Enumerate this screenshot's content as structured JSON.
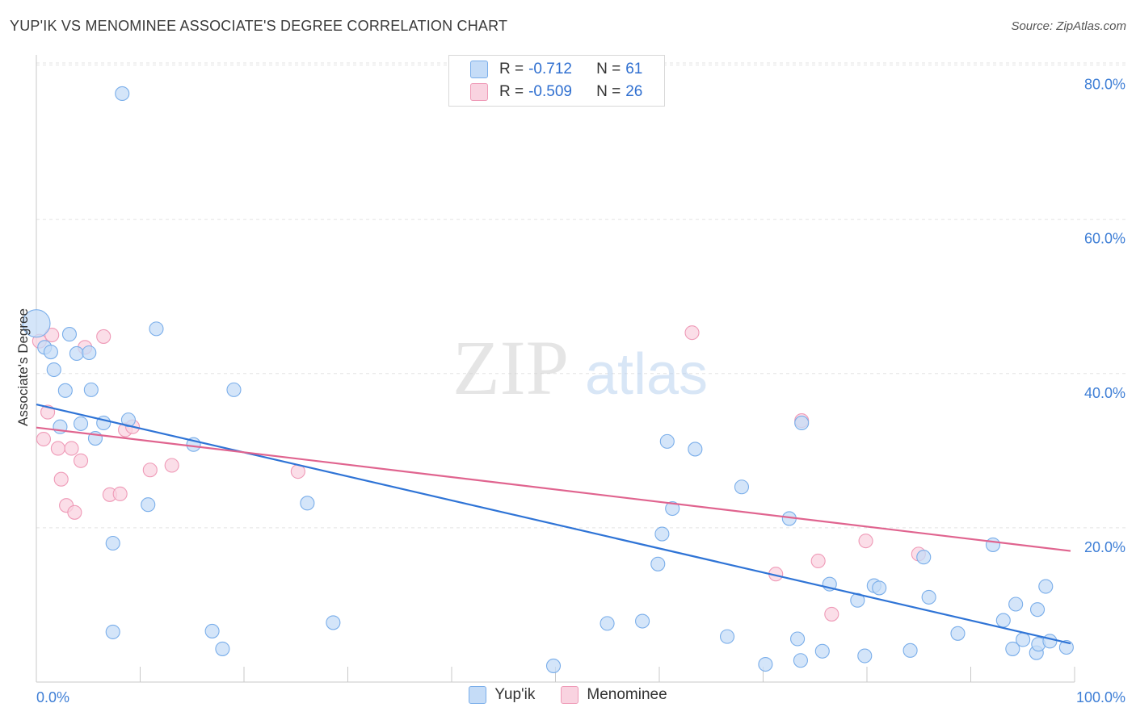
{
  "header": {
    "title": "YUP'IK VS MENOMINEE ASSOCIATE'S DEGREE CORRELATION CHART",
    "source": "Source: ZipAtlas.com"
  },
  "watermark": {
    "zip": "ZIP",
    "atlas": "atlas"
  },
  "legend": {
    "series1": {
      "r_label": "R =",
      "r_value": "-0.712",
      "n_label": "N =",
      "n_value": "61"
    },
    "series2": {
      "r_label": "R =",
      "r_value": "-0.509",
      "n_label": "N =",
      "n_value": "26"
    }
  },
  "bottom_legend": {
    "series1": "Yup'ik",
    "series2": "Menominee"
  },
  "chart_data": {
    "type": "scatter",
    "title": "YUP'IK VS MENOMINEE ASSOCIATE'S DEGREE CORRELATION CHART",
    "xlabel": "",
    "ylabel": "Associate's Degree",
    "xlim": [
      0,
      100
    ],
    "ylim": [
      0,
      84
    ],
    "x_tick_labels": [
      "0.0%",
      "100.0%"
    ],
    "y_ticks": [
      20,
      40,
      60,
      80
    ],
    "y_tick_labels": [
      "20.0%",
      "40.0%",
      "60.0%",
      "80.0%"
    ],
    "grid": true,
    "colors": {
      "series1": "#7aaeea",
      "series1_fill": "#c5dcf7",
      "series1_line": "#2f74d6",
      "series2": "#ef9ab7",
      "series2_fill": "#f9d3e0",
      "series2_line": "#e0648f"
    },
    "series": [
      {
        "name": "Yup'ik",
        "r": -0.712,
        "n": 61,
        "trend": {
          "x": [
            0,
            100
          ],
          "y": [
            36.0,
            5.0
          ]
        },
        "points": [
          {
            "x": 0.0,
            "y": 46.5,
            "big": true
          },
          {
            "x": 8.3,
            "y": 76.3
          },
          {
            "x": 0.8,
            "y": 43.4
          },
          {
            "x": 1.4,
            "y": 42.8
          },
          {
            "x": 3.2,
            "y": 45.1
          },
          {
            "x": 3.9,
            "y": 42.6
          },
          {
            "x": 5.1,
            "y": 42.7
          },
          {
            "x": 11.6,
            "y": 45.8
          },
          {
            "x": 1.7,
            "y": 40.5
          },
          {
            "x": 2.8,
            "y": 37.8
          },
          {
            "x": 5.3,
            "y": 37.9
          },
          {
            "x": 19.1,
            "y": 37.9
          },
          {
            "x": 2.3,
            "y": 33.1
          },
          {
            "x": 4.3,
            "y": 33.5
          },
          {
            "x": 6.5,
            "y": 33.6
          },
          {
            "x": 8.9,
            "y": 34.0
          },
          {
            "x": 5.7,
            "y": 31.6
          },
          {
            "x": 15.2,
            "y": 30.8
          },
          {
            "x": 61.0,
            "y": 31.2
          },
          {
            "x": 63.7,
            "y": 30.2
          },
          {
            "x": 74.0,
            "y": 33.6
          },
          {
            "x": 10.8,
            "y": 23.0
          },
          {
            "x": 26.2,
            "y": 23.2
          },
          {
            "x": 61.5,
            "y": 22.5
          },
          {
            "x": 68.2,
            "y": 25.3
          },
          {
            "x": 72.8,
            "y": 21.2
          },
          {
            "x": 7.4,
            "y": 18.0
          },
          {
            "x": 60.5,
            "y": 19.2
          },
          {
            "x": 60.1,
            "y": 15.3
          },
          {
            "x": 85.8,
            "y": 16.2
          },
          {
            "x": 92.5,
            "y": 17.8
          },
          {
            "x": 76.7,
            "y": 12.7
          },
          {
            "x": 79.4,
            "y": 10.6
          },
          {
            "x": 81.0,
            "y": 12.5
          },
          {
            "x": 81.5,
            "y": 12.2
          },
          {
            "x": 86.3,
            "y": 11.0
          },
          {
            "x": 94.7,
            "y": 10.1
          },
          {
            "x": 96.8,
            "y": 9.4
          },
          {
            "x": 97.6,
            "y": 12.4
          },
          {
            "x": 7.4,
            "y": 6.5
          },
          {
            "x": 17.0,
            "y": 6.6
          },
          {
            "x": 18.0,
            "y": 4.3
          },
          {
            "x": 28.7,
            "y": 7.7
          },
          {
            "x": 55.2,
            "y": 7.6
          },
          {
            "x": 58.6,
            "y": 7.9
          },
          {
            "x": 66.8,
            "y": 5.9
          },
          {
            "x": 73.6,
            "y": 5.6
          },
          {
            "x": 76.0,
            "y": 4.0
          },
          {
            "x": 80.1,
            "y": 3.4
          },
          {
            "x": 84.5,
            "y": 4.1
          },
          {
            "x": 89.1,
            "y": 6.3
          },
          {
            "x": 93.5,
            "y": 8.0
          },
          {
            "x": 94.4,
            "y": 4.3
          },
          {
            "x": 95.4,
            "y": 5.5
          },
          {
            "x": 96.7,
            "y": 3.8
          },
          {
            "x": 96.9,
            "y": 4.9
          },
          {
            "x": 98.0,
            "y": 5.3
          },
          {
            "x": 99.6,
            "y": 4.5
          },
          {
            "x": 50.0,
            "y": 2.1
          },
          {
            "x": 70.5,
            "y": 2.3
          },
          {
            "x": 73.9,
            "y": 2.8
          }
        ]
      },
      {
        "name": "Menominee",
        "r": -0.509,
        "n": 26,
        "trend": {
          "x": [
            0,
            100
          ],
          "y": [
            33.0,
            17.0
          ]
        },
        "points": [
          {
            "x": 1.5,
            "y": 45.0
          },
          {
            "x": 0.3,
            "y": 44.2
          },
          {
            "x": 4.7,
            "y": 43.4
          },
          {
            "x": 6.5,
            "y": 44.8
          },
          {
            "x": 63.4,
            "y": 45.3
          },
          {
            "x": 1.1,
            "y": 35.0
          },
          {
            "x": 0.7,
            "y": 31.5
          },
          {
            "x": 2.1,
            "y": 30.3
          },
          {
            "x": 3.4,
            "y": 30.3
          },
          {
            "x": 8.6,
            "y": 32.7
          },
          {
            "x": 9.3,
            "y": 33.1
          },
          {
            "x": 74.0,
            "y": 33.9
          },
          {
            "x": 4.3,
            "y": 28.7
          },
          {
            "x": 11.0,
            "y": 27.5
          },
          {
            "x": 13.1,
            "y": 28.1
          },
          {
            "x": 25.3,
            "y": 27.3
          },
          {
            "x": 2.4,
            "y": 26.3
          },
          {
            "x": 7.1,
            "y": 24.3
          },
          {
            "x": 8.1,
            "y": 24.4
          },
          {
            "x": 2.9,
            "y": 22.9
          },
          {
            "x": 3.7,
            "y": 22.0
          },
          {
            "x": 80.2,
            "y": 18.3
          },
          {
            "x": 85.3,
            "y": 16.6
          },
          {
            "x": 71.5,
            "y": 14.0
          },
          {
            "x": 75.6,
            "y": 15.7
          },
          {
            "x": 76.9,
            "y": 8.8
          }
        ]
      }
    ]
  }
}
